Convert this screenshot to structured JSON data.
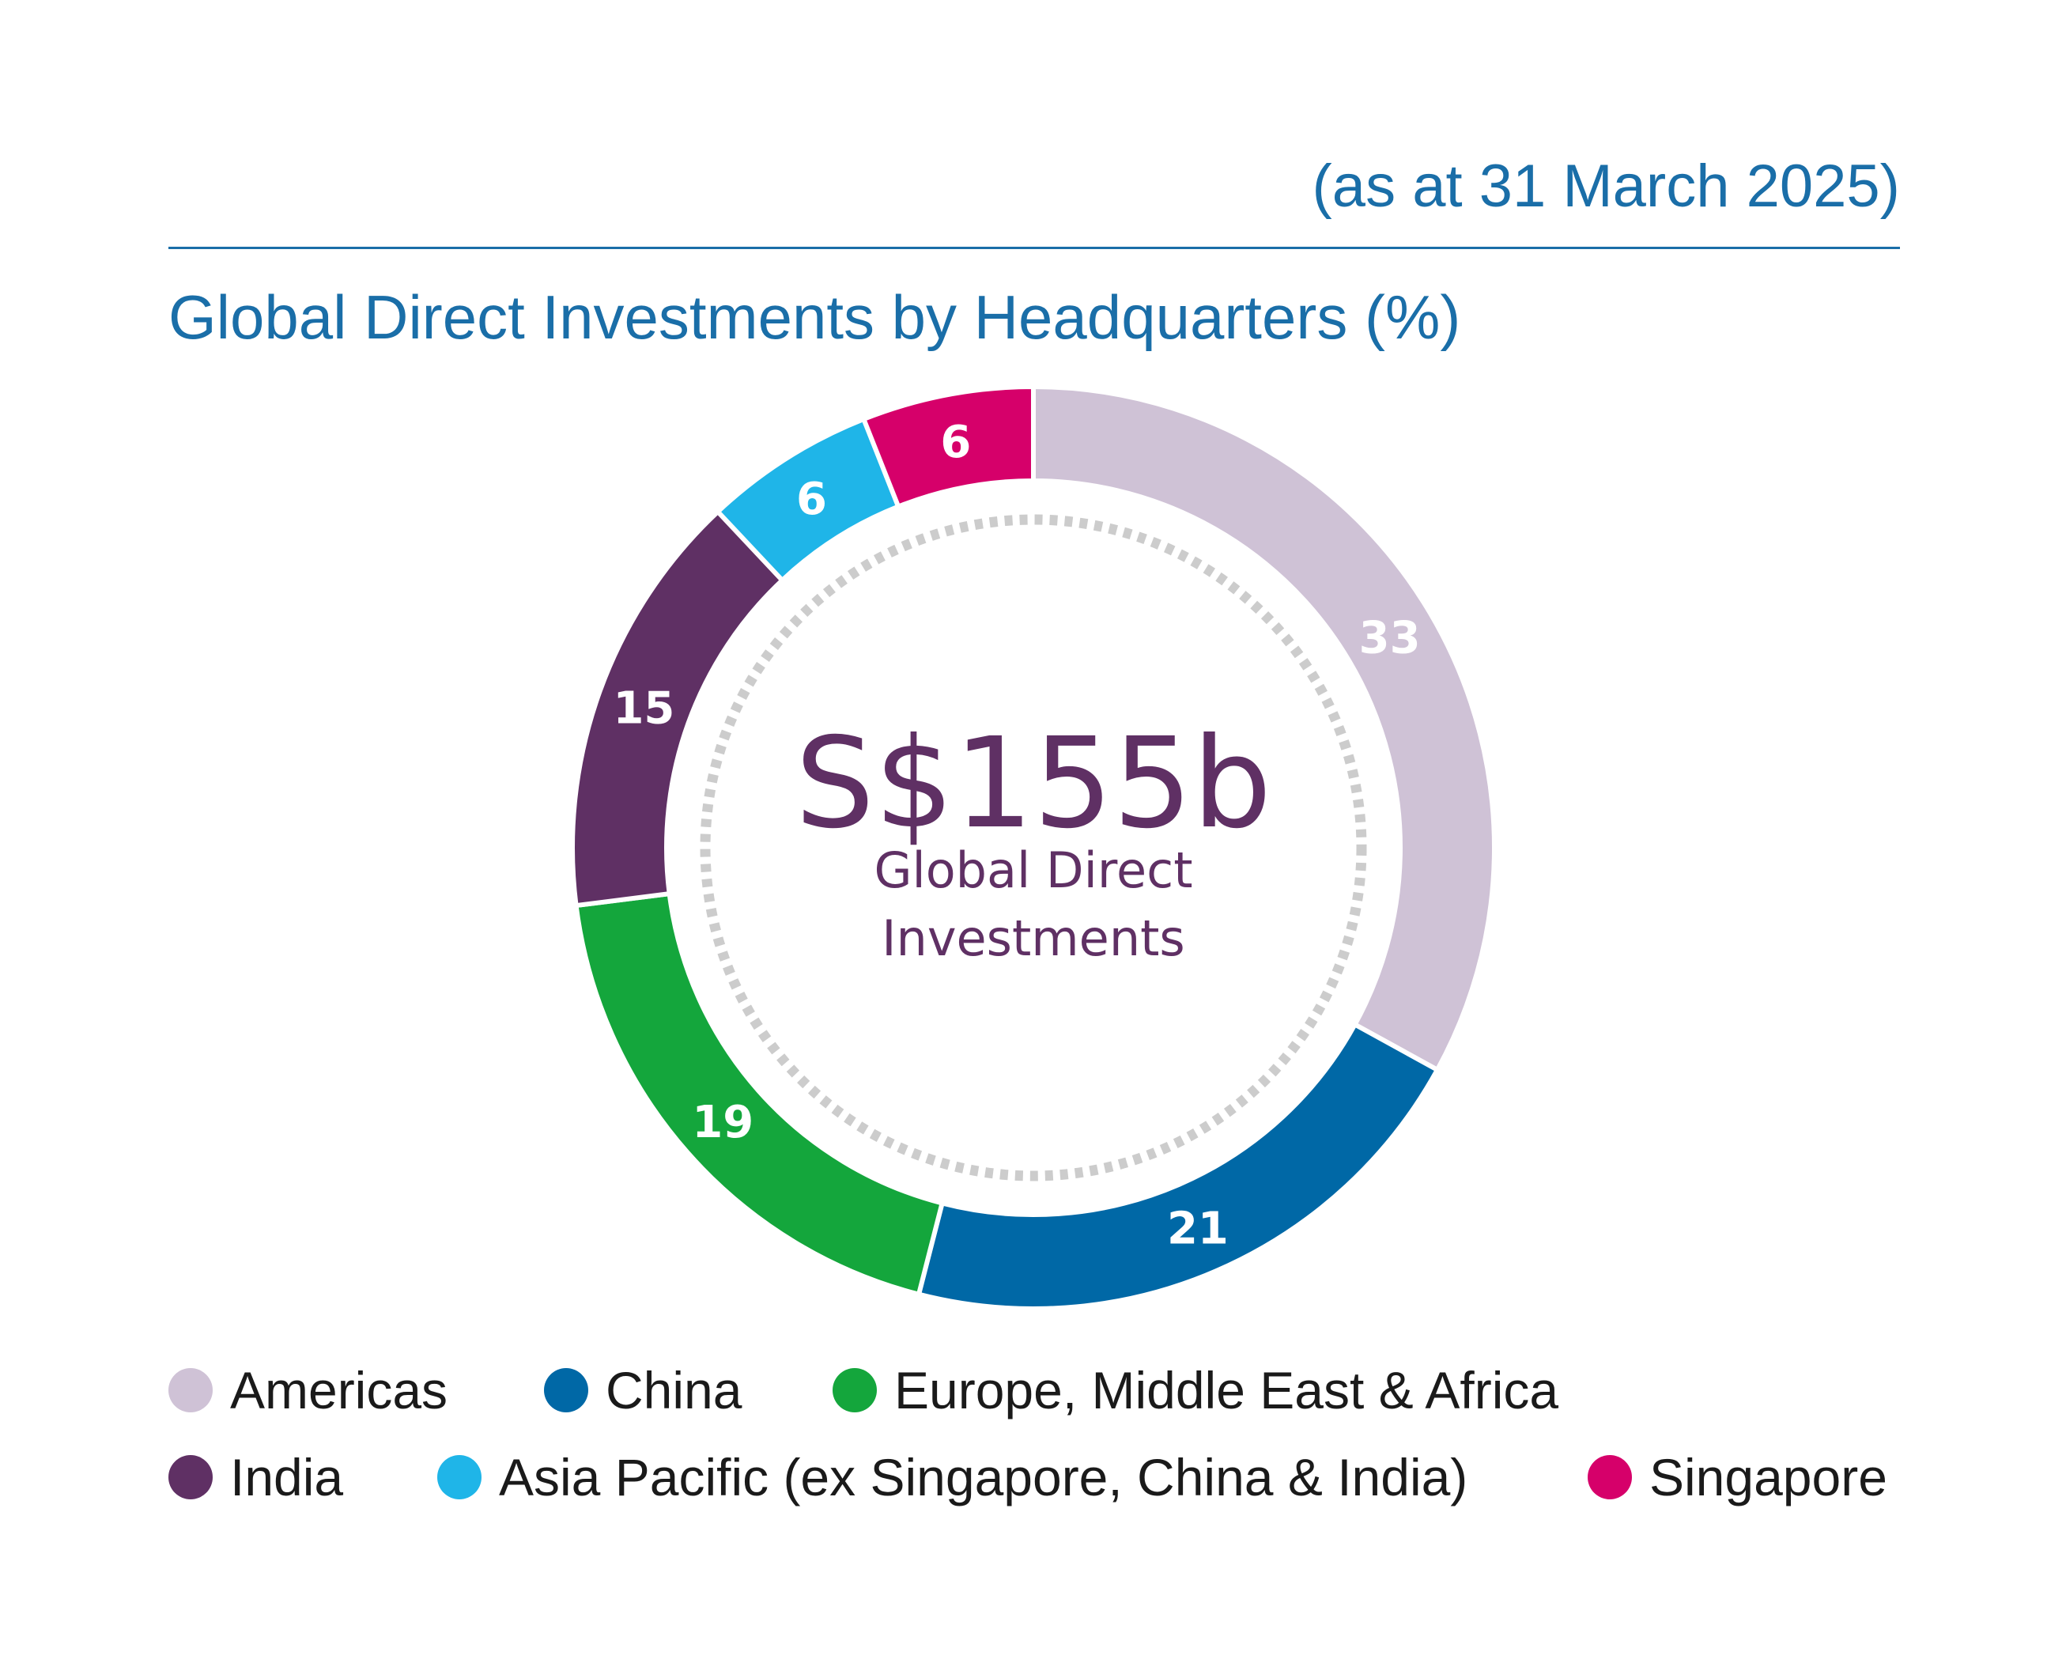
{
  "as_at": "(as at 31 March 2025)",
  "chart_data": {
    "type": "pie",
    "title": "Global Direct Investments by Headquarters (%)",
    "center": {
      "value": "S$155b",
      "label_line1": "Global Direct",
      "label_line2": "Investments"
    },
    "slices": [
      {
        "name": "Americas",
        "value": 33,
        "label": "33",
        "color": "#cfc2d6"
      },
      {
        "name": "China",
        "value": 21,
        "label": "21",
        "color": "#0068a6"
      },
      {
        "name": "Europe, Middle East & Africa",
        "value": 19,
        "label": "19",
        "color": "#14a63c"
      },
      {
        "name": "India",
        "value": 15,
        "label": "15",
        "color": "#5f3064"
      },
      {
        "name": "Asia Pacific (ex Singapore, China & India)",
        "value": 6,
        "label": "6",
        "color": "#1fb5e8"
      },
      {
        "name": "Singapore",
        "value": 6,
        "label": "6",
        "color": "#d6006a"
      }
    ],
    "legend": "bottom"
  },
  "colors": {
    "accent_blue": "#1a6ea8",
    "center_purple": "#5f3064",
    "dashed_ring": "#cccccc"
  }
}
